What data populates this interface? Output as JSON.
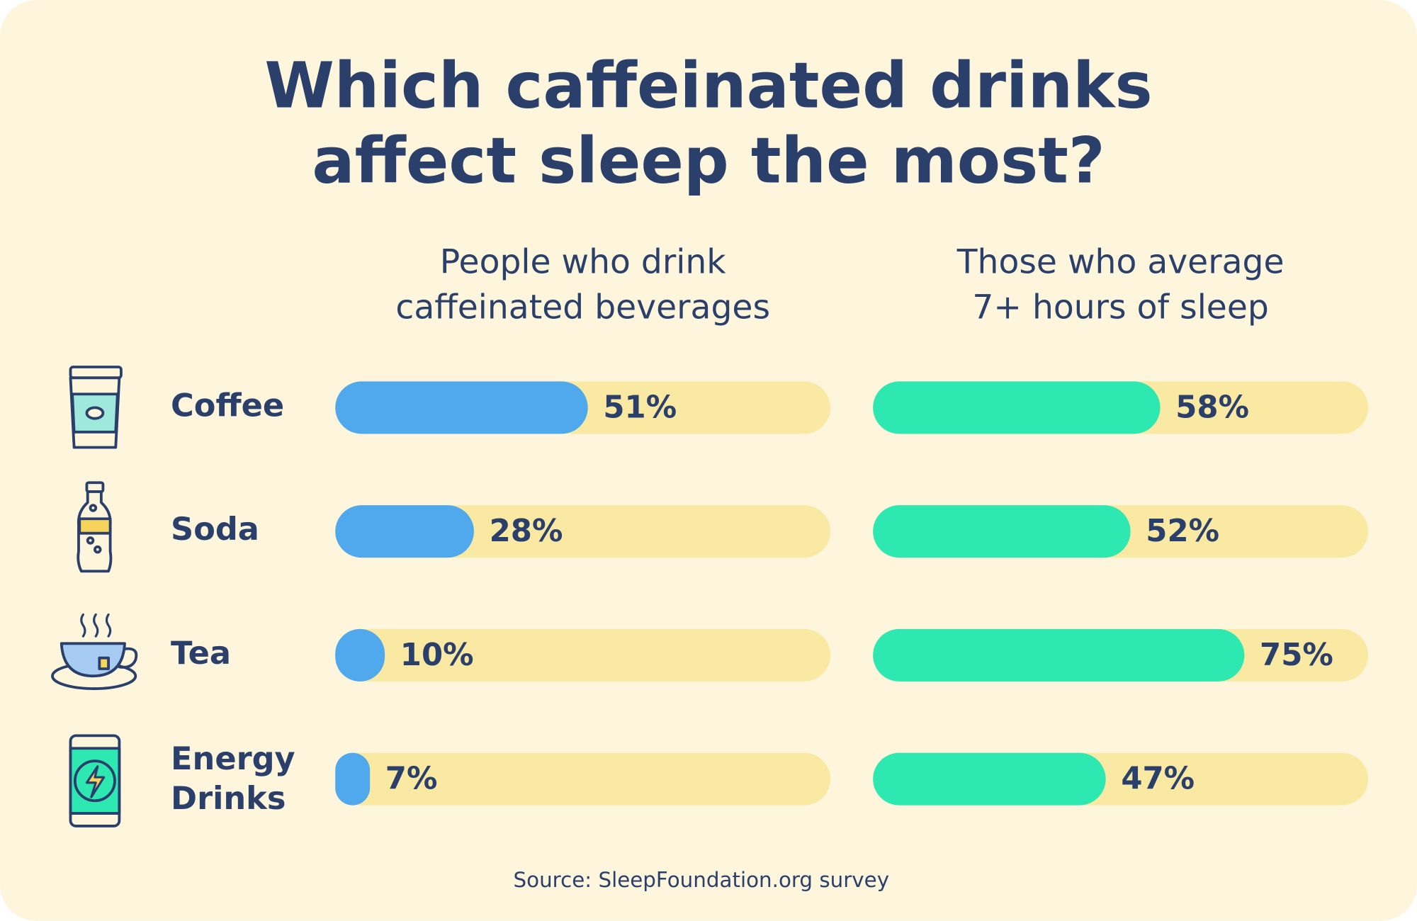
{
  "title": "Which caffeinated drinks\naffect sleep the most?",
  "source": "Source: SleepFoundation.org survey",
  "chart_data": [
    {
      "type": "bar",
      "orientation": "horizontal",
      "title": "People who drink\ncaffeinated beverages",
      "categories": [
        "Coffee",
        "Soda",
        "Tea",
        "Energy\nDrinks"
      ],
      "values": [
        51,
        28,
        10,
        7
      ],
      "value_labels": [
        "51%",
        "28%",
        "10%",
        "7%"
      ],
      "color": "#4fa9ec",
      "track_color": "#fae9a3",
      "xlim": [
        0,
        100
      ]
    },
    {
      "type": "bar",
      "orientation": "horizontal",
      "title": "Those who average\n7+ hours of sleep",
      "categories": [
        "Coffee",
        "Soda",
        "Tea",
        "Energy\nDrinks"
      ],
      "values": [
        58,
        52,
        75,
        47
      ],
      "value_labels": [
        "58%",
        "52%",
        "75%",
        "47%"
      ],
      "color": "#2ee8b2",
      "track_color": "#fae9a3",
      "xlim": [
        0,
        100
      ]
    }
  ]
}
